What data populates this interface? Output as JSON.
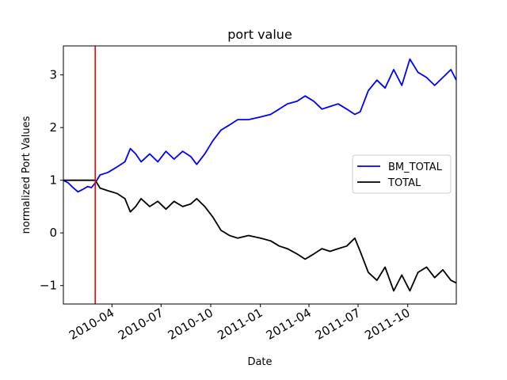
{
  "chart_data": {
    "type": "line",
    "title": "port value",
    "xlabel": "Date",
    "ylabel": "normalized Port Values",
    "xlim": [
      "2010-01-01",
      "2011-12-30"
    ],
    "ylim": [
      -1.35,
      3.55
    ],
    "yticks": [
      -1,
      0,
      1,
      2,
      3
    ],
    "ytick_labels": [
      "−1",
      "0",
      "1",
      "2",
      "3"
    ],
    "xticks": [
      "2010-04-01",
      "2010-07-01",
      "2010-10-01",
      "2011-01-01",
      "2011-04-01",
      "2011-07-01",
      "2011-10-01"
    ],
    "xtick_labels": [
      "2010-04",
      "2010-07",
      "2010-10",
      "2011-01",
      "2011-04",
      "2011-07",
      "2011-10"
    ],
    "vline": {
      "date": "2010-03-01",
      "color": "#ff0000"
    },
    "legend_position": "center-right",
    "series": [
      {
        "name": "BM_TOTAL",
        "color": "#0000ff",
        "points": [
          [
            "2010-01-01",
            1.0
          ],
          [
            "2010-01-10",
            0.95
          ],
          [
            "2010-01-20",
            0.85
          ],
          [
            "2010-01-28",
            0.78
          ],
          [
            "2010-02-05",
            0.82
          ],
          [
            "2010-02-15",
            0.88
          ],
          [
            "2010-02-22",
            0.86
          ],
          [
            "2010-03-01",
            0.95
          ],
          [
            "2010-03-10",
            1.1
          ],
          [
            "2010-03-25",
            1.15
          ],
          [
            "2010-04-10",
            1.25
          ],
          [
            "2010-04-25",
            1.35
          ],
          [
            "2010-05-05",
            1.6
          ],
          [
            "2010-05-15",
            1.5
          ],
          [
            "2010-05-25",
            1.35
          ],
          [
            "2010-06-10",
            1.5
          ],
          [
            "2010-06-25",
            1.35
          ],
          [
            "2010-07-10",
            1.55
          ],
          [
            "2010-07-25",
            1.4
          ],
          [
            "2010-08-10",
            1.55
          ],
          [
            "2010-08-25",
            1.45
          ],
          [
            "2010-09-05",
            1.3
          ],
          [
            "2010-09-20",
            1.5
          ],
          [
            "2010-10-05",
            1.75
          ],
          [
            "2010-10-20",
            1.95
          ],
          [
            "2010-11-05",
            2.05
          ],
          [
            "2010-11-20",
            2.15
          ],
          [
            "2010-12-10",
            2.15
          ],
          [
            "2011-01-01",
            2.2
          ],
          [
            "2011-01-20",
            2.25
          ],
          [
            "2011-02-05",
            2.35
          ],
          [
            "2011-02-20",
            2.45
          ],
          [
            "2011-03-10",
            2.5
          ],
          [
            "2011-03-25",
            2.6
          ],
          [
            "2011-04-10",
            2.5
          ],
          [
            "2011-04-25",
            2.35
          ],
          [
            "2011-05-10",
            2.4
          ],
          [
            "2011-05-25",
            2.45
          ],
          [
            "2011-06-10",
            2.35
          ],
          [
            "2011-06-25",
            2.25
          ],
          [
            "2011-07-05",
            2.3
          ],
          [
            "2011-07-20",
            2.7
          ],
          [
            "2011-08-05",
            2.9
          ],
          [
            "2011-08-20",
            2.75
          ],
          [
            "2011-09-05",
            3.1
          ],
          [
            "2011-09-20",
            2.8
          ],
          [
            "2011-10-05",
            3.3
          ],
          [
            "2011-10-20",
            3.05
          ],
          [
            "2011-11-05",
            2.95
          ],
          [
            "2011-11-20",
            2.8
          ],
          [
            "2011-12-05",
            2.95
          ],
          [
            "2011-12-20",
            3.1
          ],
          [
            "2011-12-30",
            2.9
          ]
        ]
      },
      {
        "name": "TOTAL",
        "color": "#000000",
        "points": [
          [
            "2010-01-01",
            1.0
          ],
          [
            "2010-03-01",
            1.0
          ],
          [
            "2010-03-10",
            0.85
          ],
          [
            "2010-03-25",
            0.8
          ],
          [
            "2010-04-10",
            0.75
          ],
          [
            "2010-04-25",
            0.65
          ],
          [
            "2010-05-05",
            0.4
          ],
          [
            "2010-05-15",
            0.5
          ],
          [
            "2010-05-25",
            0.65
          ],
          [
            "2010-06-10",
            0.5
          ],
          [
            "2010-06-25",
            0.6
          ],
          [
            "2010-07-10",
            0.45
          ],
          [
            "2010-07-25",
            0.6
          ],
          [
            "2010-08-10",
            0.5
          ],
          [
            "2010-08-25",
            0.55
          ],
          [
            "2010-09-05",
            0.65
          ],
          [
            "2010-09-20",
            0.5
          ],
          [
            "2010-10-05",
            0.3
          ],
          [
            "2010-10-20",
            0.05
          ],
          [
            "2010-11-05",
            -0.05
          ],
          [
            "2010-11-20",
            -0.1
          ],
          [
            "2010-12-10",
            -0.05
          ],
          [
            "2011-01-01",
            -0.1
          ],
          [
            "2011-01-20",
            -0.15
          ],
          [
            "2011-02-05",
            -0.25
          ],
          [
            "2011-02-20",
            -0.3
          ],
          [
            "2011-03-10",
            -0.4
          ],
          [
            "2011-03-25",
            -0.5
          ],
          [
            "2011-04-10",
            -0.4
          ],
          [
            "2011-04-25",
            -0.3
          ],
          [
            "2011-05-10",
            -0.35
          ],
          [
            "2011-05-25",
            -0.3
          ],
          [
            "2011-06-10",
            -0.25
          ],
          [
            "2011-06-25",
            -0.1
          ],
          [
            "2011-07-05",
            -0.35
          ],
          [
            "2011-07-20",
            -0.75
          ],
          [
            "2011-08-05",
            -0.9
          ],
          [
            "2011-08-20",
            -0.65
          ],
          [
            "2011-09-05",
            -1.1
          ],
          [
            "2011-09-20",
            -0.8
          ],
          [
            "2011-10-05",
            -1.1
          ],
          [
            "2011-10-20",
            -0.75
          ],
          [
            "2011-11-05",
            -0.65
          ],
          [
            "2011-11-20",
            -0.85
          ],
          [
            "2011-12-05",
            -0.7
          ],
          [
            "2011-12-20",
            -0.9
          ],
          [
            "2011-12-30",
            -0.95
          ]
        ]
      }
    ]
  }
}
